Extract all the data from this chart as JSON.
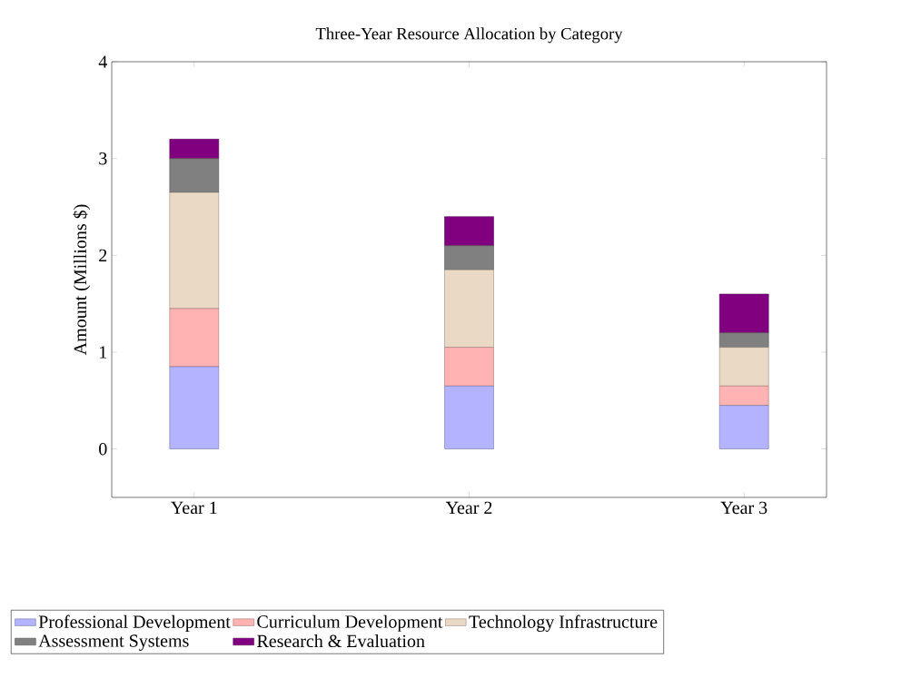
{
  "chart_data": {
    "type": "bar",
    "title": "Three-Year Resource Allocation by Category",
    "ylabel": "Amount (Millions $)",
    "categories": [
      "Year 1",
      "Year 2",
      "Year 3"
    ],
    "stacked": true,
    "series": [
      {
        "name": "Professional Development",
        "color": "#b3b3ff",
        "values": [
          0.85,
          0.65,
          0.45
        ]
      },
      {
        "name": "Curriculum Development",
        "color": "#ffb3b3",
        "values": [
          0.6,
          0.4,
          0.2
        ]
      },
      {
        "name": "Technology Infrastructure",
        "color": "#ead9c5",
        "values": [
          1.2,
          0.8,
          0.4
        ]
      },
      {
        "name": "Assessment Systems",
        "color": "#808080",
        "values": [
          0.35,
          0.25,
          0.15
        ]
      },
      {
        "name": "Research & Evaluation",
        "color": "#800080",
        "values": [
          0.2,
          0.3,
          0.4
        ]
      }
    ],
    "ylim": [
      -0.5,
      4
    ],
    "yticks": [
      0,
      1,
      2,
      3,
      4
    ],
    "grid": false,
    "legend": "bottom"
  }
}
